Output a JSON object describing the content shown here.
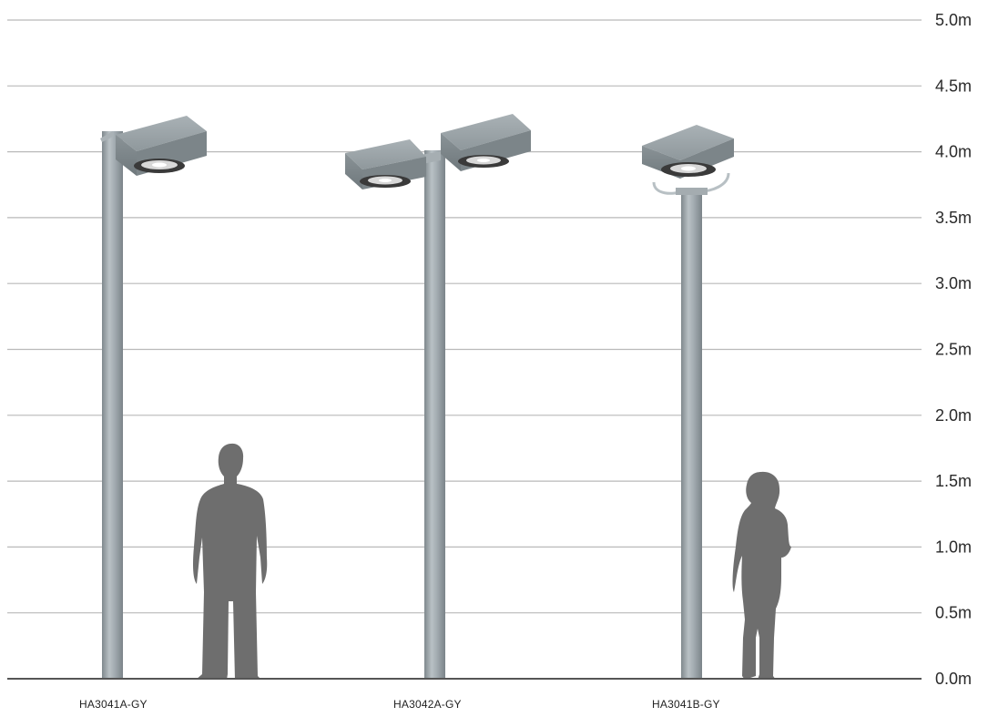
{
  "scale": {
    "unit": "m",
    "ticks": [
      "5.0m",
      "4.5m",
      "4.0m",
      "3.5m",
      "3.0m",
      "2.5m",
      "2.0m",
      "1.5m",
      "1.0m",
      "0.5m",
      "0.0m"
    ]
  },
  "products": [
    {
      "label": "HA3041A-GY"
    },
    {
      "label": "HA3042A-GY"
    },
    {
      "label": "HA3041B-GY"
    }
  ],
  "colors": {
    "gridline": "#b9b9b9",
    "ground": "#555555",
    "pole": "#9aa3a8",
    "luminaire": "#8e979c",
    "silhouette": "#6e6e6e"
  }
}
